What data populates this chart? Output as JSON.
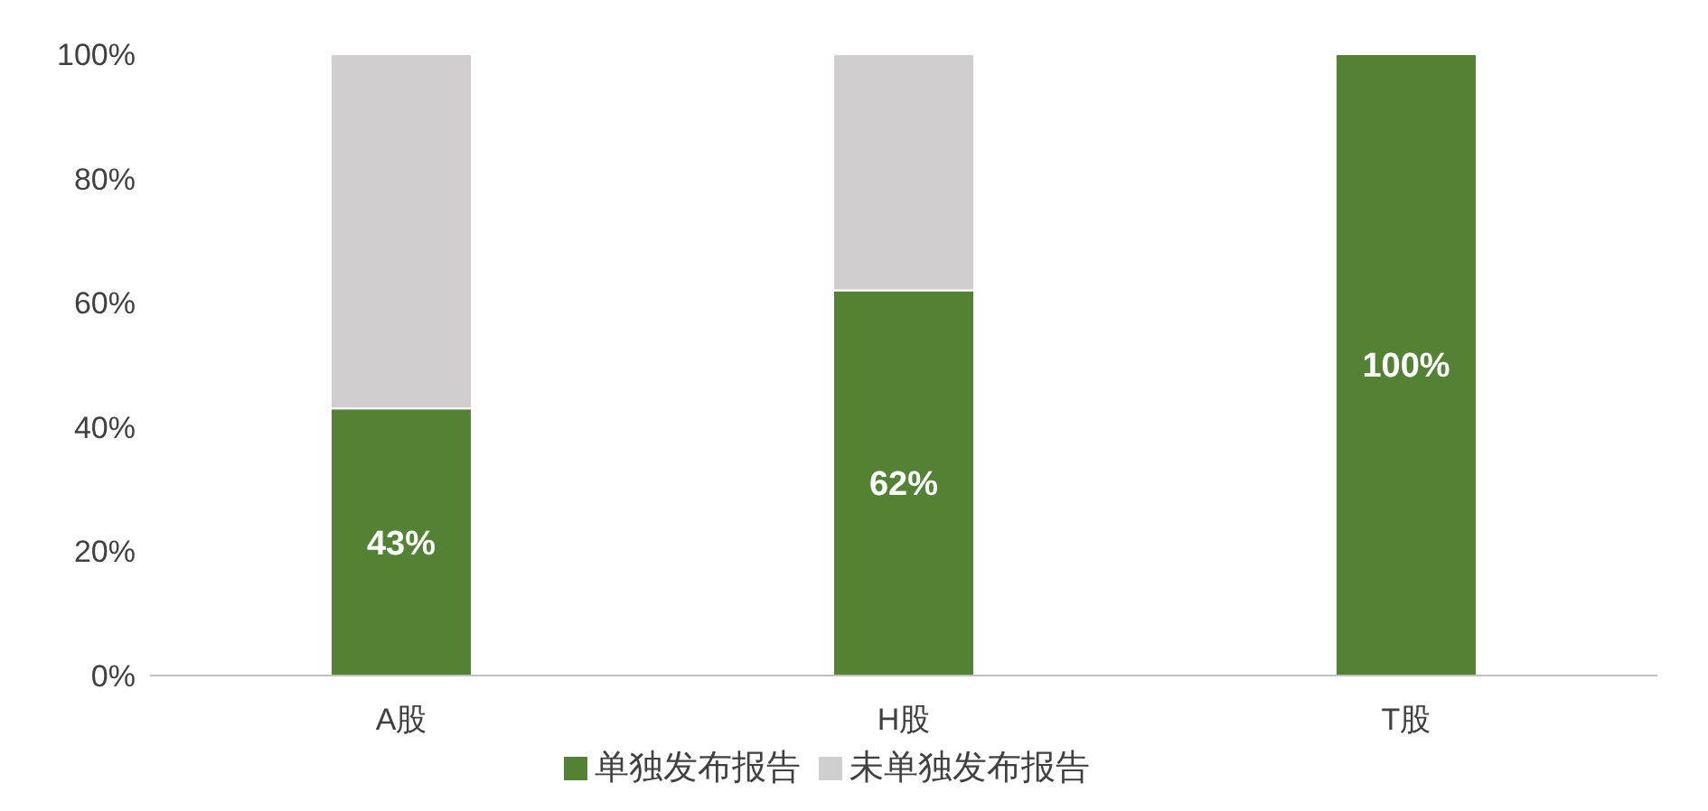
{
  "chart_data": {
    "type": "bar",
    "stacked": true,
    "categories": [
      "A股",
      "H股",
      "T股"
    ],
    "series": [
      {
        "name": "单独发布报告",
        "color": "#548235",
        "values": [
          43,
          62,
          100
        ],
        "value_labels": [
          "43%",
          "62%",
          "100%"
        ]
      },
      {
        "name": "未单独发布报告",
        "color": "#d0cece",
        "values": [
          57,
          38,
          0
        ]
      }
    ],
    "ylim": [
      0,
      100
    ],
    "yticks": [
      {
        "value": 0,
        "label": "0%"
      },
      {
        "value": 20,
        "label": "20%"
      },
      {
        "value": 40,
        "label": "40%"
      },
      {
        "value": 60,
        "label": "60%"
      },
      {
        "value": 80,
        "label": "80%"
      },
      {
        "value": 100,
        "label": "100%"
      }
    ],
    "grid": false,
    "legend": "bottom"
  }
}
